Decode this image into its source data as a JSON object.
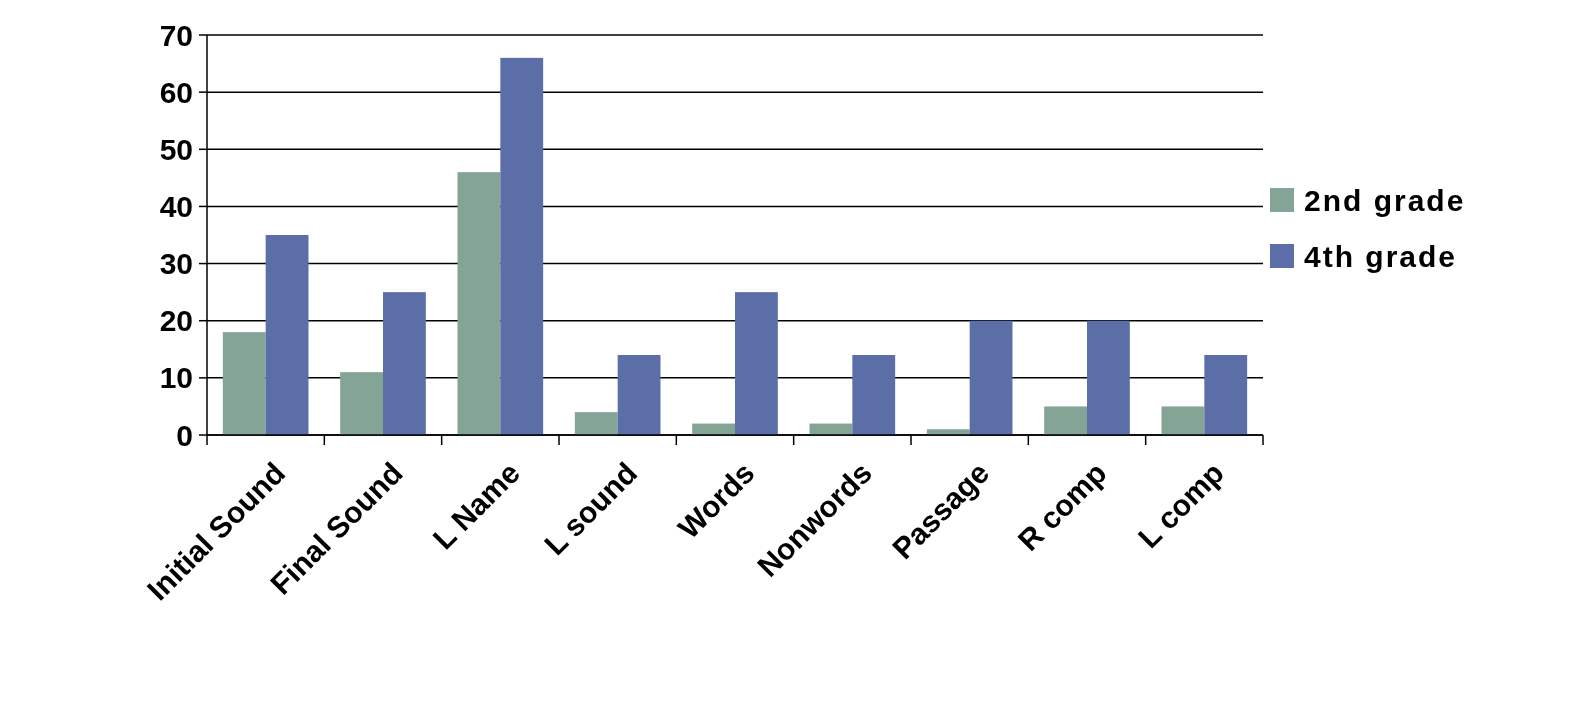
{
  "chart_data": {
    "type": "bar",
    "categories": [
      "Initial Sound",
      "Final Sound",
      "L Name",
      "L sound",
      "Words",
      "Nonwords",
      "Passage",
      "R comp",
      "L comp"
    ],
    "series": [
      {
        "name": "2nd grade",
        "color": "#84a496",
        "values": [
          18,
          11,
          46,
          4,
          2,
          2,
          1,
          5,
          5
        ]
      },
      {
        "name": "4th grade",
        "color": "#5b6ea8",
        "values": [
          35,
          25,
          66,
          14,
          25,
          14,
          20,
          20,
          14
        ]
      }
    ],
    "ylim": [
      0,
      70
    ],
    "yticks": [
      0,
      10,
      20,
      30,
      40,
      50,
      60,
      70
    ],
    "grid": "y",
    "legend": "right"
  }
}
